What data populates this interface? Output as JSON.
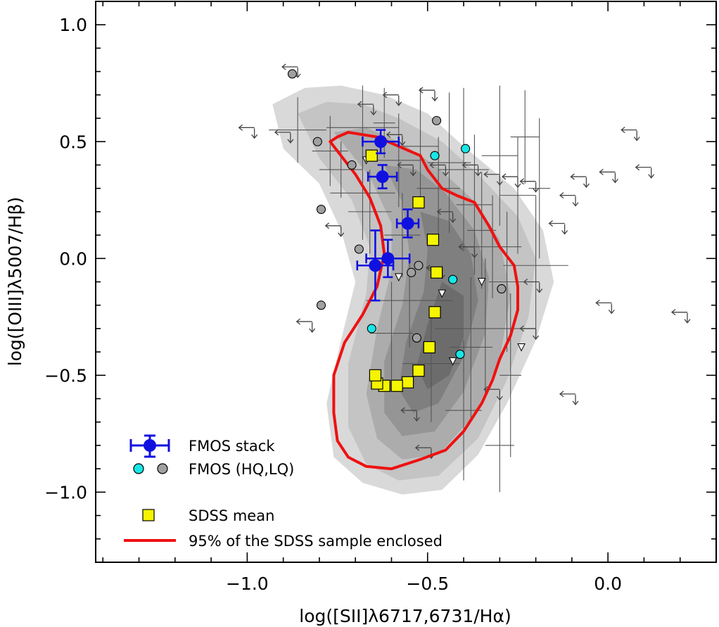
{
  "chart_data": {
    "type": "scatter",
    "xlabel": "log([SII]λ6717,6731/Hα)",
    "ylabel": "log([OIII]λ5007/Hβ)",
    "xlim": [
      -1.42,
      0.3
    ],
    "ylim": [
      -1.3,
      1.1
    ],
    "x_ticks": [
      -1.0,
      -0.5,
      0.0
    ],
    "x_tick_labels": [
      "−1.0",
      "−0.5",
      "0.0"
    ],
    "y_ticks": [
      1.0,
      0.5,
      0.0,
      -0.5,
      -1.0
    ],
    "y_tick_labels": [
      "1.0",
      "0.5",
      "0.0",
      "−0.5",
      "−1.0"
    ],
    "colors": {
      "stack": "#1010e0",
      "hq": "#19e6e6",
      "lq": "#a0a0a0",
      "sdss_mean": "#f5f500",
      "contour_line": "#ee1111",
      "errorbar": "#555555",
      "upper_limit": "#444444"
    },
    "legend": {
      "position": "bottom-left",
      "entries": [
        {
          "key": "stack",
          "label": "FMOS stack"
        },
        {
          "key": "fmos",
          "label": "FMOS (HQ,LQ)"
        },
        {
          "key": "sdss_mean",
          "label": "SDSS mean"
        },
        {
          "key": "contour",
          "label": "95% of the SDSS sample enclosed"
        }
      ]
    },
    "sdss_density_contours": [
      {
        "level": 1,
        "fill": "#d9d9d9",
        "points": [
          [
            -0.93,
            0.66
          ],
          [
            -0.84,
            0.73
          ],
          [
            -0.74,
            0.74
          ],
          [
            -0.62,
            0.7
          ],
          [
            -0.5,
            0.62
          ],
          [
            -0.4,
            0.48
          ],
          [
            -0.26,
            0.3
          ],
          [
            -0.18,
            0.12
          ],
          [
            -0.15,
            -0.1
          ],
          [
            -0.2,
            -0.35
          ],
          [
            -0.28,
            -0.62
          ],
          [
            -0.36,
            -0.84
          ],
          [
            -0.46,
            -0.99
          ],
          [
            -0.57,
            -1.01
          ],
          [
            -0.68,
            -0.96
          ],
          [
            -0.76,
            -0.85
          ],
          [
            -0.78,
            -0.62
          ],
          [
            -0.74,
            -0.35
          ],
          [
            -0.7,
            -0.1
          ],
          [
            -0.74,
            0.12
          ],
          [
            -0.8,
            0.32
          ],
          [
            -0.9,
            0.47
          ]
        ]
      },
      {
        "level": 2,
        "fill": "#c4c4c4",
        "points": [
          [
            -0.86,
            0.62
          ],
          [
            -0.78,
            0.67
          ],
          [
            -0.68,
            0.66
          ],
          [
            -0.58,
            0.6
          ],
          [
            -0.46,
            0.5
          ],
          [
            -0.36,
            0.36
          ],
          [
            -0.25,
            0.18
          ],
          [
            -0.2,
            0.0
          ],
          [
            -0.22,
            -0.25
          ],
          [
            -0.28,
            -0.52
          ],
          [
            -0.36,
            -0.77
          ],
          [
            -0.47,
            -0.93
          ],
          [
            -0.58,
            -0.95
          ],
          [
            -0.67,
            -0.88
          ],
          [
            -0.72,
            -0.72
          ],
          [
            -0.72,
            -0.45
          ],
          [
            -0.67,
            -0.15
          ],
          [
            -0.66,
            0.05
          ],
          [
            -0.71,
            0.25
          ],
          [
            -0.8,
            0.43
          ]
        ]
      },
      {
        "level": 3,
        "fill": "#acacac",
        "points": [
          [
            -0.76,
            0.54
          ],
          [
            -0.67,
            0.56
          ],
          [
            -0.58,
            0.5
          ],
          [
            -0.48,
            0.4
          ],
          [
            -0.38,
            0.26
          ],
          [
            -0.3,
            0.08
          ],
          [
            -0.27,
            -0.16
          ],
          [
            -0.3,
            -0.43
          ],
          [
            -0.37,
            -0.67
          ],
          [
            -0.47,
            -0.84
          ],
          [
            -0.57,
            -0.86
          ],
          [
            -0.64,
            -0.77
          ],
          [
            -0.67,
            -0.58
          ],
          [
            -0.64,
            -0.3
          ],
          [
            -0.6,
            -0.05
          ],
          [
            -0.6,
            0.15
          ],
          [
            -0.66,
            0.35
          ]
        ]
      },
      {
        "level": 4,
        "fill": "#959595",
        "points": [
          [
            -0.62,
            0.4
          ],
          [
            -0.53,
            0.38
          ],
          [
            -0.45,
            0.28
          ],
          [
            -0.37,
            0.12
          ],
          [
            -0.33,
            -0.08
          ],
          [
            -0.34,
            -0.32
          ],
          [
            -0.4,
            -0.57
          ],
          [
            -0.48,
            -0.74
          ],
          [
            -0.57,
            -0.76
          ],
          [
            -0.62,
            -0.66
          ],
          [
            -0.62,
            -0.44
          ],
          [
            -0.57,
            -0.2
          ],
          [
            -0.55,
            0.02
          ],
          [
            -0.57,
            0.24
          ]
        ]
      },
      {
        "level": 5,
        "fill": "#7f7f7f",
        "points": [
          [
            -0.52,
            0.2
          ],
          [
            -0.44,
            0.16
          ],
          [
            -0.38,
            0.02
          ],
          [
            -0.36,
            -0.18
          ],
          [
            -0.4,
            -0.42
          ],
          [
            -0.47,
            -0.62
          ],
          [
            -0.54,
            -0.66
          ],
          [
            -0.58,
            -0.56
          ],
          [
            -0.56,
            -0.36
          ],
          [
            -0.51,
            -0.14
          ],
          [
            -0.5,
            0.04
          ]
        ]
      },
      {
        "level": 6,
        "fill": "#6c6c6c",
        "points": [
          [
            -0.46,
            -0.1
          ],
          [
            -0.4,
            -0.16
          ],
          [
            -0.4,
            -0.34
          ],
          [
            -0.44,
            -0.5
          ],
          [
            -0.5,
            -0.56
          ],
          [
            -0.53,
            -0.46
          ],
          [
            -0.5,
            -0.28
          ]
        ]
      }
    ],
    "sdss_95pct_contour": [
      [
        -0.75,
        0.52
      ],
      [
        -0.72,
        0.54
      ],
      [
        -0.68,
        0.53
      ],
      [
        -0.64,
        0.52
      ],
      [
        -0.58,
        0.48
      ],
      [
        -0.52,
        0.44
      ],
      [
        -0.5,
        0.38
      ],
      [
        -0.46,
        0.3
      ],
      [
        -0.42,
        0.27
      ],
      [
        -0.37,
        0.24
      ],
      [
        -0.33,
        0.14
      ],
      [
        -0.3,
        0.05
      ],
      [
        -0.26,
        -0.03
      ],
      [
        -0.25,
        -0.12
      ],
      [
        -0.25,
        -0.22
      ],
      [
        -0.27,
        -0.33
      ],
      [
        -0.3,
        -0.43
      ],
      [
        -0.32,
        -0.52
      ],
      [
        -0.35,
        -0.62
      ],
      [
        -0.4,
        -0.74
      ],
      [
        -0.45,
        -0.82
      ],
      [
        -0.52,
        -0.86
      ],
      [
        -0.6,
        -0.9
      ],
      [
        -0.67,
        -0.89
      ],
      [
        -0.72,
        -0.85
      ],
      [
        -0.75,
        -0.78
      ],
      [
        -0.76,
        -0.66
      ],
      [
        -0.76,
        -0.5
      ],
      [
        -0.73,
        -0.36
      ],
      [
        -0.68,
        -0.24
      ],
      [
        -0.64,
        -0.12
      ],
      [
        -0.62,
        0.02
      ],
      [
        -0.63,
        0.14
      ],
      [
        -0.66,
        0.26
      ],
      [
        -0.7,
        0.36
      ],
      [
        -0.74,
        0.44
      ],
      [
        -0.77,
        0.5
      ]
    ],
    "fmos_stack": [
      {
        "x": -0.63,
        "y": 0.5,
        "xerr": 0.05,
        "yerr": 0.05
      },
      {
        "x": -0.625,
        "y": 0.35,
        "xerr": 0.04,
        "yerr": 0.05
      },
      {
        "x": -0.555,
        "y": 0.15,
        "xerr": 0.03,
        "yerr": 0.06
      },
      {
        "x": -0.61,
        "y": 0.0,
        "xerr": 0.06,
        "yerr": 0.08
      },
      {
        "x": -0.645,
        "y": -0.03,
        "xerr": 0.05,
        "yerr": 0.15
      }
    ],
    "fmos_hq": [
      {
        "x": -0.48,
        "y": 0.44
      },
      {
        "x": -0.395,
        "y": 0.47
      },
      {
        "x": -0.43,
        "y": -0.09
      },
      {
        "x": -0.41,
        "y": -0.41
      },
      {
        "x": -0.655,
        "y": -0.3
      }
    ],
    "fmos_lq": [
      {
        "x": -0.875,
        "y": 0.79
      },
      {
        "x": -0.805,
        "y": 0.5
      },
      {
        "x": -0.71,
        "y": 0.4
      },
      {
        "x": -0.795,
        "y": 0.21
      },
      {
        "x": -0.69,
        "y": 0.04
      },
      {
        "x": -0.795,
        "y": -0.2
      },
      {
        "x": -0.475,
        "y": 0.59
      },
      {
        "x": -0.525,
        "y": -0.03
      },
      {
        "x": -0.545,
        "y": -0.06
      },
      {
        "x": -0.53,
        "y": -0.34
      },
      {
        "x": -0.295,
        "y": -0.13
      }
    ],
    "sdss_mean": [
      {
        "x": -0.655,
        "y": 0.44
      },
      {
        "x": -0.525,
        "y": 0.24
      },
      {
        "x": -0.485,
        "y": 0.08
      },
      {
        "x": -0.475,
        "y": -0.06
      },
      {
        "x": -0.48,
        "y": -0.23
      },
      {
        "x": -0.495,
        "y": -0.38
      },
      {
        "x": -0.525,
        "y": -0.48
      },
      {
        "x": -0.555,
        "y": -0.53
      },
      {
        "x": -0.585,
        "y": -0.545
      },
      {
        "x": -0.62,
        "y": -0.545
      },
      {
        "x": -0.64,
        "y": -0.535
      },
      {
        "x": -0.645,
        "y": -0.5
      }
    ],
    "fmos_errorbars": [
      {
        "x": -0.86,
        "y": 0.55,
        "xerr": 0.08,
        "yerr": 0.14
      },
      {
        "x": -0.77,
        "y": 0.46,
        "xerr": 0.05,
        "yerr": 0.15
      },
      {
        "x": -0.74,
        "y": 0.38,
        "xerr": 0.06,
        "yerr": 0.12
      },
      {
        "x": -0.68,
        "y": 0.28,
        "xerr": 0.09,
        "yerr": 0.2
      },
      {
        "x": -0.66,
        "y": 0.2,
        "xerr": 0.06,
        "yerr": 0.18
      },
      {
        "x": -0.62,
        "y": 0.58,
        "xerr": 0.03,
        "yerr": 0.15
      },
      {
        "x": -0.58,
        "y": 0.42,
        "xerr": 0.06,
        "yerr": 0.2
      },
      {
        "x": -0.57,
        "y": 0.1,
        "xerr": 0.05,
        "yerr": 0.18
      },
      {
        "x": -0.52,
        "y": 0.48,
        "xerr": 0.05,
        "yerr": 0.25
      },
      {
        "x": -0.47,
        "y": 0.3,
        "xerr": 0.06,
        "yerr": 0.22
      },
      {
        "x": -0.44,
        "y": 0.41,
        "xerr": 0.06,
        "yerr": 0.3
      },
      {
        "x": -0.4,
        "y": 0.38,
        "xerr": 0.07,
        "yerr": 0.35
      },
      {
        "x": -0.37,
        "y": 0.23,
        "xerr": 0.05,
        "yerr": 0.3
      },
      {
        "x": -0.35,
        "y": 0.12,
        "xerr": 0.04,
        "yerr": 0.25
      },
      {
        "x": -0.32,
        "y": 0.05,
        "xerr": 0.08,
        "yerr": 0.22
      },
      {
        "x": -0.3,
        "y": 0.44,
        "xerr": 0.05,
        "yerr": 0.3
      },
      {
        "x": -0.28,
        "y": -0.1,
        "xerr": 0.05,
        "yerr": 0.3
      },
      {
        "x": -0.27,
        "y": -0.5,
        "xerr": 0.03,
        "yerr": 0.35
      },
      {
        "x": -0.25,
        "y": 0.27,
        "xerr": 0.05,
        "yerr": 0.25
      },
      {
        "x": -0.23,
        "y": 0.52,
        "xerr": 0.04,
        "yerr": 0.2
      },
      {
        "x": -0.2,
        "y": -0.03,
        "xerr": 0.09,
        "yerr": 0.3
      },
      {
        "x": -0.19,
        "y": 0.3,
        "xerr": 0.03,
        "yerr": 0.3
      },
      {
        "x": -0.55,
        "y": -0.18,
        "xerr": 0.12,
        "yerr": 0.2
      },
      {
        "x": -0.49,
        "y": -0.45,
        "xerr": 0.08,
        "yerr": 0.25
      },
      {
        "x": -0.6,
        "y": -0.32,
        "xerr": 0.06,
        "yerr": 0.22
      },
      {
        "x": -0.4,
        "y": -0.65,
        "xerr": 0.05,
        "yerr": 0.3
      },
      {
        "x": -0.34,
        "y": -0.3,
        "xerr": 0.14,
        "yerr": 0.3
      },
      {
        "x": -0.38,
        "y": -0.38,
        "xerr": 0.06,
        "yerr": 0.3
      },
      {
        "x": -0.3,
        "y": -0.8,
        "xerr": 0.04,
        "yerr": 0.2
      },
      {
        "x": -0.68,
        "y": 0.56,
        "xerr": 0.1,
        "yerr": 0.18
      }
    ],
    "upper_limits_left": [
      {
        "x": -0.86,
        "y": 0.82
      },
      {
        "x": -0.98,
        "y": 0.56
      },
      {
        "x": -0.88,
        "y": 0.54
      },
      {
        "x": -0.65,
        "y": 0.66
      },
      {
        "x": -0.58,
        "y": 0.7
      },
      {
        "x": -0.48,
        "y": 0.72
      },
      {
        "x": -0.57,
        "y": 0.53
      },
      {
        "x": -0.54,
        "y": 0.4
      },
      {
        "x": -0.45,
        "y": 0.4
      },
      {
        "x": -0.36,
        "y": 0.4
      },
      {
        "x": -0.3,
        "y": 0.36
      },
      {
        "x": -0.25,
        "y": 0.35
      },
      {
        "x": -0.2,
        "y": 0.33
      },
      {
        "x": -0.09,
        "y": 0.27
      },
      {
        "x": -0.06,
        "y": 0.35
      },
      {
        "x": 0.12,
        "y": 0.39
      },
      {
        "x": 0.02,
        "y": 0.37
      },
      {
        "x": 0.08,
        "y": 0.55
      },
      {
        "x": -0.74,
        "y": 0.14
      },
      {
        "x": -0.43,
        "y": 0.2
      },
      {
        "x": -0.37,
        "y": 0.05
      },
      {
        "x": -0.12,
        "y": 0.15
      },
      {
        "x": -0.46,
        "y": -0.04
      },
      {
        "x": -0.19,
        "y": -0.1
      },
      {
        "x": -0.2,
        "y": -0.3
      },
      {
        "x": 0.01,
        "y": -0.19
      },
      {
        "x": 0.22,
        "y": -0.23
      },
      {
        "x": -0.09,
        "y": -0.58
      },
      {
        "x": -0.53,
        "y": -0.65
      },
      {
        "x": -0.49,
        "y": -0.81
      },
      {
        "x": -0.3,
        "y": -0.56
      },
      {
        "x": -0.82,
        "y": -0.27
      }
    ],
    "upper_limits_down": [
      {
        "x": -0.67,
        "y": 0.42
      },
      {
        "x": -0.35,
        "y": -0.1
      },
      {
        "x": -0.46,
        "y": -0.15
      },
      {
        "x": -0.24,
        "y": -0.38
      },
      {
        "x": -0.58,
        "y": -0.08
      },
      {
        "x": -0.43,
        "y": -0.44
      }
    ]
  },
  "legend_labels": {
    "stack": "FMOS stack",
    "fmos": "FMOS (HQ,LQ)",
    "sdss_mean": "SDSS mean",
    "contour": "95% of the SDSS sample enclosed"
  },
  "axes": {
    "xlabel": "log([SII]λ6717,6731/Hα)",
    "ylabel": "log([OIII]λ5007/Hβ)"
  }
}
